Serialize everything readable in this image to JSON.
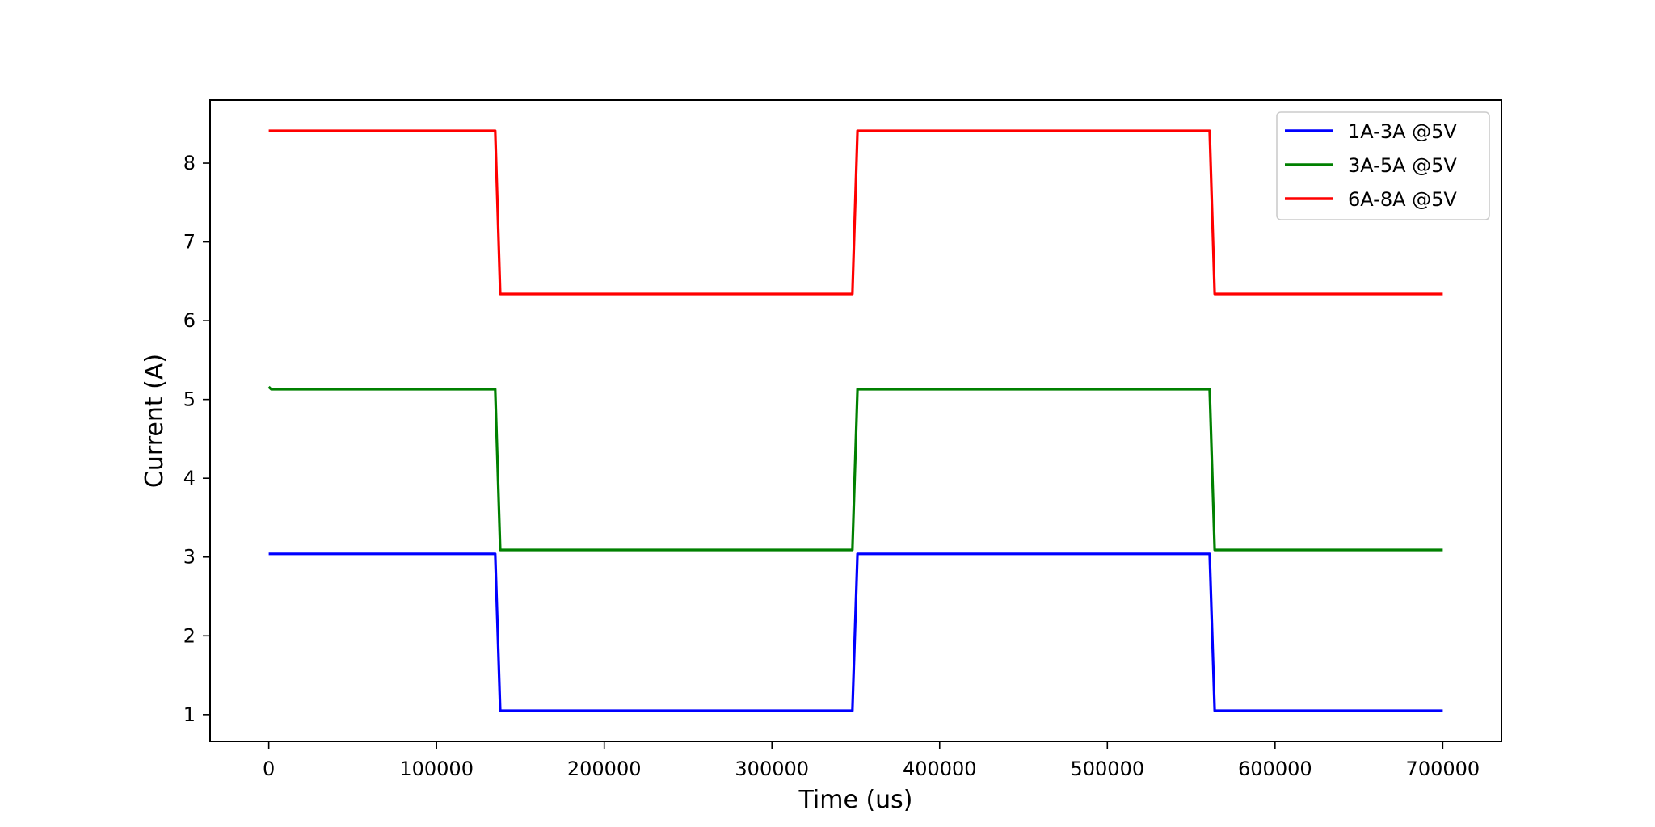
{
  "chart_data": {
    "type": "line",
    "title": "",
    "xlabel": "Time (us)",
    "ylabel": "Current (A)",
    "xlim": [
      -35000,
      735000
    ],
    "ylim": [
      0.66,
      8.8
    ],
    "xticks": [
      0,
      100000,
      200000,
      300000,
      400000,
      500000,
      600000,
      700000
    ],
    "yticks": [
      1,
      2,
      3,
      4,
      5,
      6,
      7,
      8
    ],
    "grid": false,
    "legend_position": "top-right",
    "series": [
      {
        "name": "1A-3A @5V",
        "color": "#0000ff",
        "points": [
          [
            0,
            3.04
          ],
          [
            135000,
            3.04
          ],
          [
            138000,
            1.05
          ],
          [
            348000,
            1.05
          ],
          [
            351000,
            3.04
          ],
          [
            561000,
            3.04
          ],
          [
            564000,
            1.05
          ],
          [
            700000,
            1.05
          ]
        ]
      },
      {
        "name": "3A-5A @5V",
        "color": "#008000",
        "points": [
          [
            0,
            5.16
          ],
          [
            1500,
            5.13
          ],
          [
            135000,
            5.13
          ],
          [
            138000,
            3.09
          ],
          [
            348000,
            3.09
          ],
          [
            351000,
            5.13
          ],
          [
            561000,
            5.13
          ],
          [
            564000,
            3.09
          ],
          [
            700000,
            3.09
          ]
        ]
      },
      {
        "name": "6A-8A @5V",
        "color": "#ff0000",
        "points": [
          [
            0,
            8.41
          ],
          [
            135000,
            8.41
          ],
          [
            138000,
            6.34
          ],
          [
            348000,
            6.34
          ],
          [
            351000,
            8.41
          ],
          [
            561000,
            8.41
          ],
          [
            564000,
            6.34
          ],
          [
            700000,
            6.34
          ]
        ]
      }
    ]
  }
}
